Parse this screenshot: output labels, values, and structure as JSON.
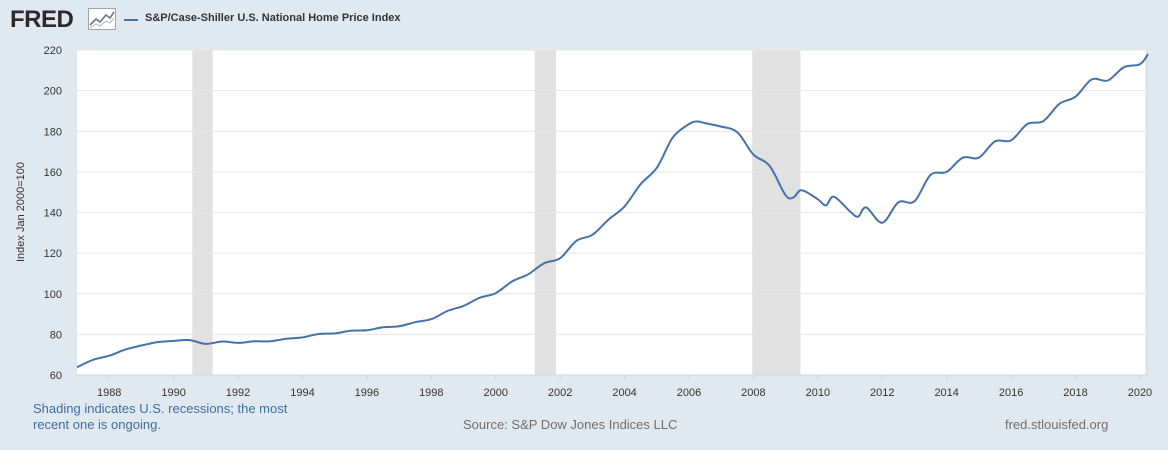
{
  "brand": {
    "logo_text": "FRED",
    "logo_icon": "chart-line-icon"
  },
  "footer": {
    "note_line1": "Shading indicates U.S. recessions; the most",
    "note_line2": "recent one is ongoing.",
    "source": "Source: S&P Dow Jones Indices LLC",
    "site": "fred.stlouisfed.org"
  },
  "colors": {
    "series": "#4572a7",
    "recession": "#e1e1e1",
    "background": "#e1e9f0",
    "plot": "#ffffff"
  },
  "chart_data": {
    "type": "line",
    "title": "",
    "xlabel": "",
    "ylabel": "Index Jan 2000=100",
    "ylim": [
      60,
      220
    ],
    "xlim": [
      1987.0,
      2020.25
    ],
    "y_ticks": [
      60,
      80,
      100,
      120,
      140,
      160,
      180,
      200,
      220
    ],
    "x_ticks": [
      1988,
      1990,
      1992,
      1994,
      1996,
      1998,
      2000,
      2002,
      2004,
      2006,
      2008,
      2010,
      2012,
      2014,
      2016,
      2018,
      2020
    ],
    "grid": true,
    "legend_position": "top-left",
    "recessions": [
      [
        1990.58,
        1991.21
      ],
      [
        2001.21,
        2001.87
      ],
      [
        2007.96,
        2009.46
      ],
      [
        2020.17,
        2020.25
      ]
    ],
    "series": [
      {
        "name": "S&P/Case-Shiller U.S. National Home Price Index",
        "color": "#4572a7",
        "x": [
          1987.0,
          1987.5,
          1988.0,
          1988.5,
          1989.0,
          1989.5,
          1990.0,
          1990.5,
          1991.0,
          1991.5,
          1992.0,
          1992.5,
          1993.0,
          1993.5,
          1994.0,
          1994.5,
          1995.0,
          1995.5,
          1996.0,
          1996.5,
          1997.0,
          1997.5,
          1998.0,
          1998.5,
          1999.0,
          1999.5,
          2000.0,
          2000.5,
          2001.0,
          2001.5,
          2002.0,
          2002.5,
          2003.0,
          2003.5,
          2004.0,
          2004.5,
          2005.0,
          2005.5,
          2006.0,
          2006.25,
          2006.5,
          2007.0,
          2007.5,
          2008.0,
          2008.5,
          2009.0,
          2009.25,
          2009.5,
          2010.0,
          2010.25,
          2010.5,
          2011.0,
          2011.25,
          2011.5,
          2012.0,
          2012.5,
          2013.0,
          2013.5,
          2014.0,
          2014.5,
          2015.0,
          2015.5,
          2016.0,
          2016.5,
          2017.0,
          2017.5,
          2018.0,
          2018.5,
          2019.0,
          2019.5,
          2020.0,
          2020.25
        ],
        "y": [
          63.8,
          67.5,
          69.5,
          72.5,
          74.5,
          76.2,
          76.8,
          77.2,
          75.3,
          76.5,
          75.8,
          76.6,
          76.6,
          77.8,
          78.5,
          80.2,
          80.5,
          81.8,
          82.0,
          83.5,
          84.0,
          86.0,
          87.5,
          91.5,
          94.0,
          98.0,
          100.3,
          106.0,
          109.5,
          115.0,
          117.5,
          126.0,
          129.0,
          136.5,
          143.0,
          154.0,
          162.0,
          177.0,
          183.5,
          184.8,
          184.0,
          182.3,
          179.5,
          168.5,
          163.0,
          148.5,
          147.5,
          151.0,
          146.5,
          143.5,
          147.8,
          140.5,
          138.0,
          142.5,
          135.0,
          145.0,
          145.5,
          158.5,
          160.0,
          167.0,
          167.0,
          175.0,
          175.5,
          183.5,
          185.0,
          193.5,
          197.0,
          205.5,
          205.0,
          211.5,
          213.0,
          218.0
        ]
      }
    ]
  }
}
